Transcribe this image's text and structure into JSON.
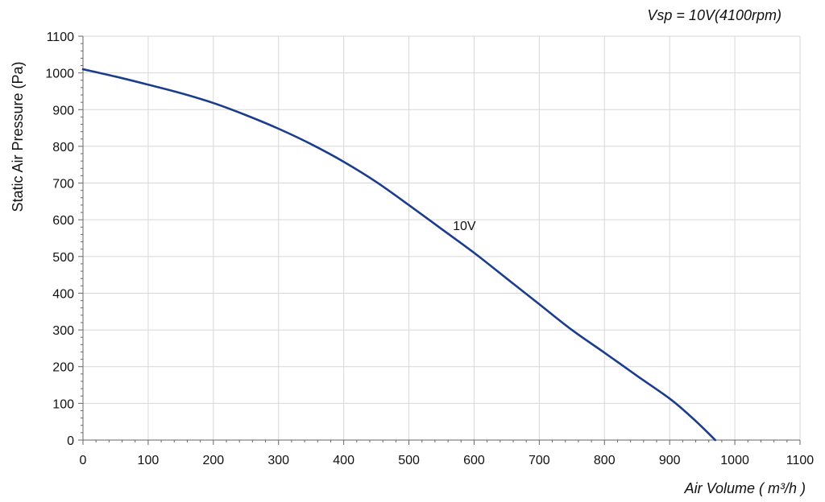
{
  "chart_data": {
    "type": "line",
    "subtitle": "Vsp = 10V(4100rpm)",
    "xlabel": "Air Volume ( m³/h )",
    "ylabel": "Static Air Pressure  (Pa)",
    "xlim": [
      0,
      1100
    ],
    "ylim": [
      0,
      1100
    ],
    "xticks": [
      0,
      100,
      200,
      300,
      400,
      500,
      600,
      700,
      800,
      900,
      1000,
      1100
    ],
    "yticks": [
      0,
      100,
      200,
      300,
      400,
      500,
      600,
      700,
      800,
      900,
      1000,
      1100
    ],
    "grid": true,
    "series": [
      {
        "name": "10V",
        "color": "#1c3d8c",
        "x": [
          0,
          50,
          100,
          150,
          200,
          250,
          300,
          350,
          400,
          450,
          500,
          550,
          600,
          650,
          700,
          750,
          800,
          850,
          900,
          930,
          950,
          970
        ],
        "y": [
          1010,
          990,
          968,
          945,
          918,
          885,
          848,
          806,
          758,
          703,
          640,
          575,
          510,
          440,
          370,
          300,
          238,
          175,
          113,
          68,
          35,
          0
        ]
      }
    ]
  }
}
